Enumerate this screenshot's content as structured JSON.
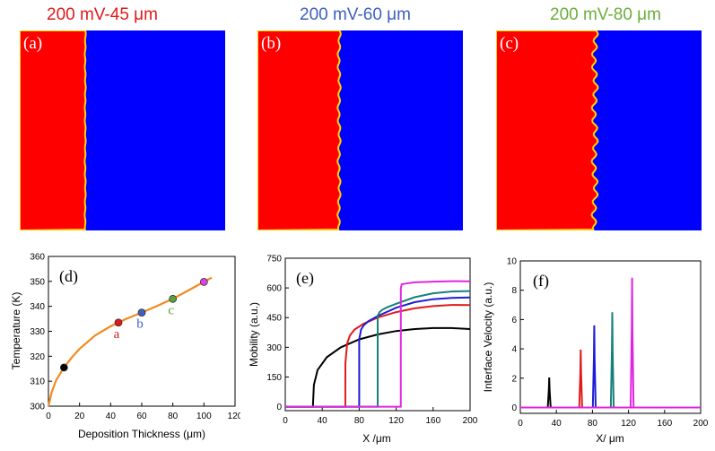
{
  "chart_data": [
    {
      "type": "image",
      "panel": "(a)",
      "title": "200 mV-45 μm",
      "title_color": "#e01a1a",
      "colors": {
        "left": "#ff0000",
        "right": "#0000ff",
        "interface": "#ffd200"
      },
      "interface_amplitude": 0.4
    },
    {
      "type": "image",
      "panel": "(b)",
      "title": "200 mV-60 μm",
      "title_color": "#3d5fbf",
      "colors": {
        "left": "#ff0000",
        "right": "#0000ff",
        "interface": "#ffd200"
      },
      "interface_amplitude": 1.2
    },
    {
      "type": "image",
      "panel": "(c)",
      "title": "200 mV-80 μm",
      "title_color": "#6aae3a",
      "colors": {
        "left": "#ff0000",
        "right": "#0000ff",
        "interface": "#ffd200"
      },
      "interface_amplitude": 2.4
    },
    {
      "type": "line",
      "panel": "(d)",
      "xlabel": "Deposition Thickness (μm)",
      "ylabel": "Temperature (K)",
      "xlim": [
        0,
        120
      ],
      "ylim": [
        300,
        360
      ],
      "xticks": [
        0,
        20,
        40,
        60,
        80,
        100,
        120
      ],
      "yticks": [
        300,
        310,
        320,
        330,
        340,
        350,
        360
      ],
      "curve": {
        "color": "#f28a1f",
        "x": [
          0,
          2,
          5,
          10,
          15,
          20,
          30,
          40,
          45,
          50,
          60,
          70,
          80,
          90,
          100,
          105
        ],
        "y": [
          300,
          305.5,
          310.5,
          315.5,
          319.5,
          323,
          328.3,
          332,
          333.5,
          335,
          337.5,
          340.2,
          343,
          346.4,
          349.8,
          351.5
        ]
      },
      "points": [
        {
          "x": 10,
          "y": 315.5,
          "label": "",
          "color": "#000000"
        },
        {
          "x": 45,
          "y": 333.5,
          "label": "a",
          "color": "#e01a1a"
        },
        {
          "x": 60,
          "y": 337.5,
          "label": "b",
          "color": "#3d5fbf"
        },
        {
          "x": 80,
          "y": 343,
          "label": "c",
          "color": "#5aa33a"
        },
        {
          "x": 100,
          "y": 349.8,
          "label": "",
          "color": "#e040e0"
        }
      ]
    },
    {
      "type": "line",
      "panel": "(e)",
      "xlabel": "X /μm",
      "ylabel": "Mobility (a.u.)",
      "xlim": [
        0,
        200
      ],
      "ylim": [
        -20,
        750
      ],
      "xticks": [
        0,
        40,
        80,
        120,
        160,
        200
      ],
      "yticks": [
        0,
        150,
        300,
        450,
        600,
        750
      ],
      "series": [
        {
          "name": "black",
          "color": "#000000",
          "x0": 30,
          "x": [
            30,
            31,
            35,
            45,
            60,
            80,
            100,
            120,
            140,
            160,
            180,
            200
          ],
          "y": [
            15,
            110,
            185,
            250,
            300,
            340,
            365,
            382,
            392,
            397,
            397,
            392
          ]
        },
        {
          "name": "red",
          "color": "#e01a1a",
          "x0": 65,
          "x": [
            65,
            67,
            70,
            75,
            85,
            100,
            120,
            140,
            160,
            180,
            200
          ],
          "y": [
            220,
            320,
            360,
            390,
            420,
            450,
            478,
            497,
            508,
            514,
            513
          ]
        },
        {
          "name": "blue",
          "color": "#1d1dd6",
          "x0": 80,
          "x": [
            80,
            82,
            85,
            90,
            100,
            120,
            140,
            160,
            180,
            200
          ],
          "y": [
            340,
            390,
            412,
            432,
            458,
            500,
            528,
            543,
            550,
            552
          ]
        },
        {
          "name": "teal",
          "color": "#17807a",
          "x0": 100,
          "x": [
            100,
            102,
            105,
            110,
            120,
            140,
            160,
            180,
            200
          ],
          "y": [
            460,
            478,
            490,
            502,
            520,
            553,
            573,
            582,
            584
          ]
        },
        {
          "name": "magenta",
          "color": "#e025e0",
          "x0": 125,
          "x": [
            125,
            126,
            130,
            140,
            160,
            180,
            200
          ],
          "y": [
            600,
            618,
            622,
            628,
            632,
            634,
            633
          ]
        }
      ]
    },
    {
      "type": "line",
      "panel": "(f)",
      "xlabel": "X/ μm",
      "ylabel": "Interface Velocity (a.u.)",
      "xlim": [
        0,
        200
      ],
      "ylim": [
        -0.4,
        10
      ],
      "xticks": [
        0,
        40,
        80,
        120,
        160,
        200
      ],
      "yticks": [
        0,
        2,
        4,
        6,
        8,
        10
      ],
      "peaks": [
        {
          "center": 32,
          "height": 2.05,
          "color": "#000000"
        },
        {
          "center": 67,
          "height": 3.95,
          "color": "#e01a1a"
        },
        {
          "center": 82,
          "height": 5.6,
          "color": "#1d1dd6"
        },
        {
          "center": 102,
          "height": 6.5,
          "color": "#17807a"
        },
        {
          "center": 124,
          "height": 8.85,
          "color": "#e025e0"
        }
      ],
      "baseline_color": "#e025e0"
    }
  ]
}
